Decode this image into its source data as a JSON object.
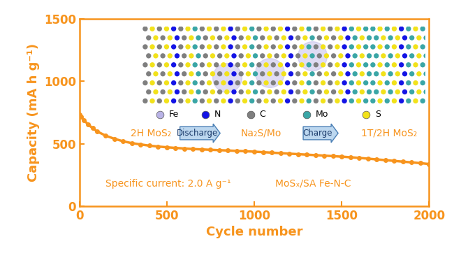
{
  "chart_data": {
    "type": "line",
    "xlabel": "Cycle number",
    "ylabel": "Capacity (mA h g⁻¹)",
    "x": [
      1,
      10,
      25,
      50,
      75,
      100,
      150,
      200,
      250,
      300,
      350,
      400,
      450,
      500,
      550,
      600,
      650,
      700,
      750,
      800,
      850,
      900,
      950,
      1000,
      1050,
      1100,
      1150,
      1200,
      1250,
      1300,
      1350,
      1400,
      1450,
      1500,
      1550,
      1600,
      1650,
      1700,
      1750,
      1800,
      1850,
      1900,
      1950,
      2000
    ],
    "values": [
      735,
      715,
      690,
      655,
      625,
      600,
      565,
      540,
      520,
      505,
      495,
      485,
      478,
      472,
      467,
      462,
      458,
      455,
      452,
      449,
      446,
      443,
      440,
      437,
      433,
      429,
      425,
      421,
      417,
      413,
      409,
      405,
      401,
      397,
      392,
      387,
      381,
      375,
      369,
      363,
      357,
      351,
      345,
      338
    ],
    "color": "#f7941d",
    "marker": "circle",
    "line_style": "solid",
    "xlim": [
      0,
      2000
    ],
    "xticks": [
      0,
      500,
      1000,
      1500,
      2000
    ],
    "ylim": [
      0,
      1500
    ],
    "yticks": [
      0,
      500,
      1000,
      1500
    ],
    "annotations": [
      "Specific current: 2.0 A g⁻¹",
      "MoSₓ/SA Fe-N-C"
    ],
    "inset": {
      "elements": [
        {
          "name": "Fe",
          "color": "#b9b3e6"
        },
        {
          "name": "N",
          "color": "#1414e6"
        },
        {
          "name": "C",
          "color": "#7f7f7f"
        },
        {
          "name": "Mo",
          "color": "#3aa6a6"
        },
        {
          "name": "S",
          "color": "#f2e21a"
        }
      ],
      "scheme": [
        "2H MoS₂",
        "Discharge",
        "Na₂S/Mo",
        "Charge",
        "1T/2H MoS₂"
      ]
    }
  }
}
